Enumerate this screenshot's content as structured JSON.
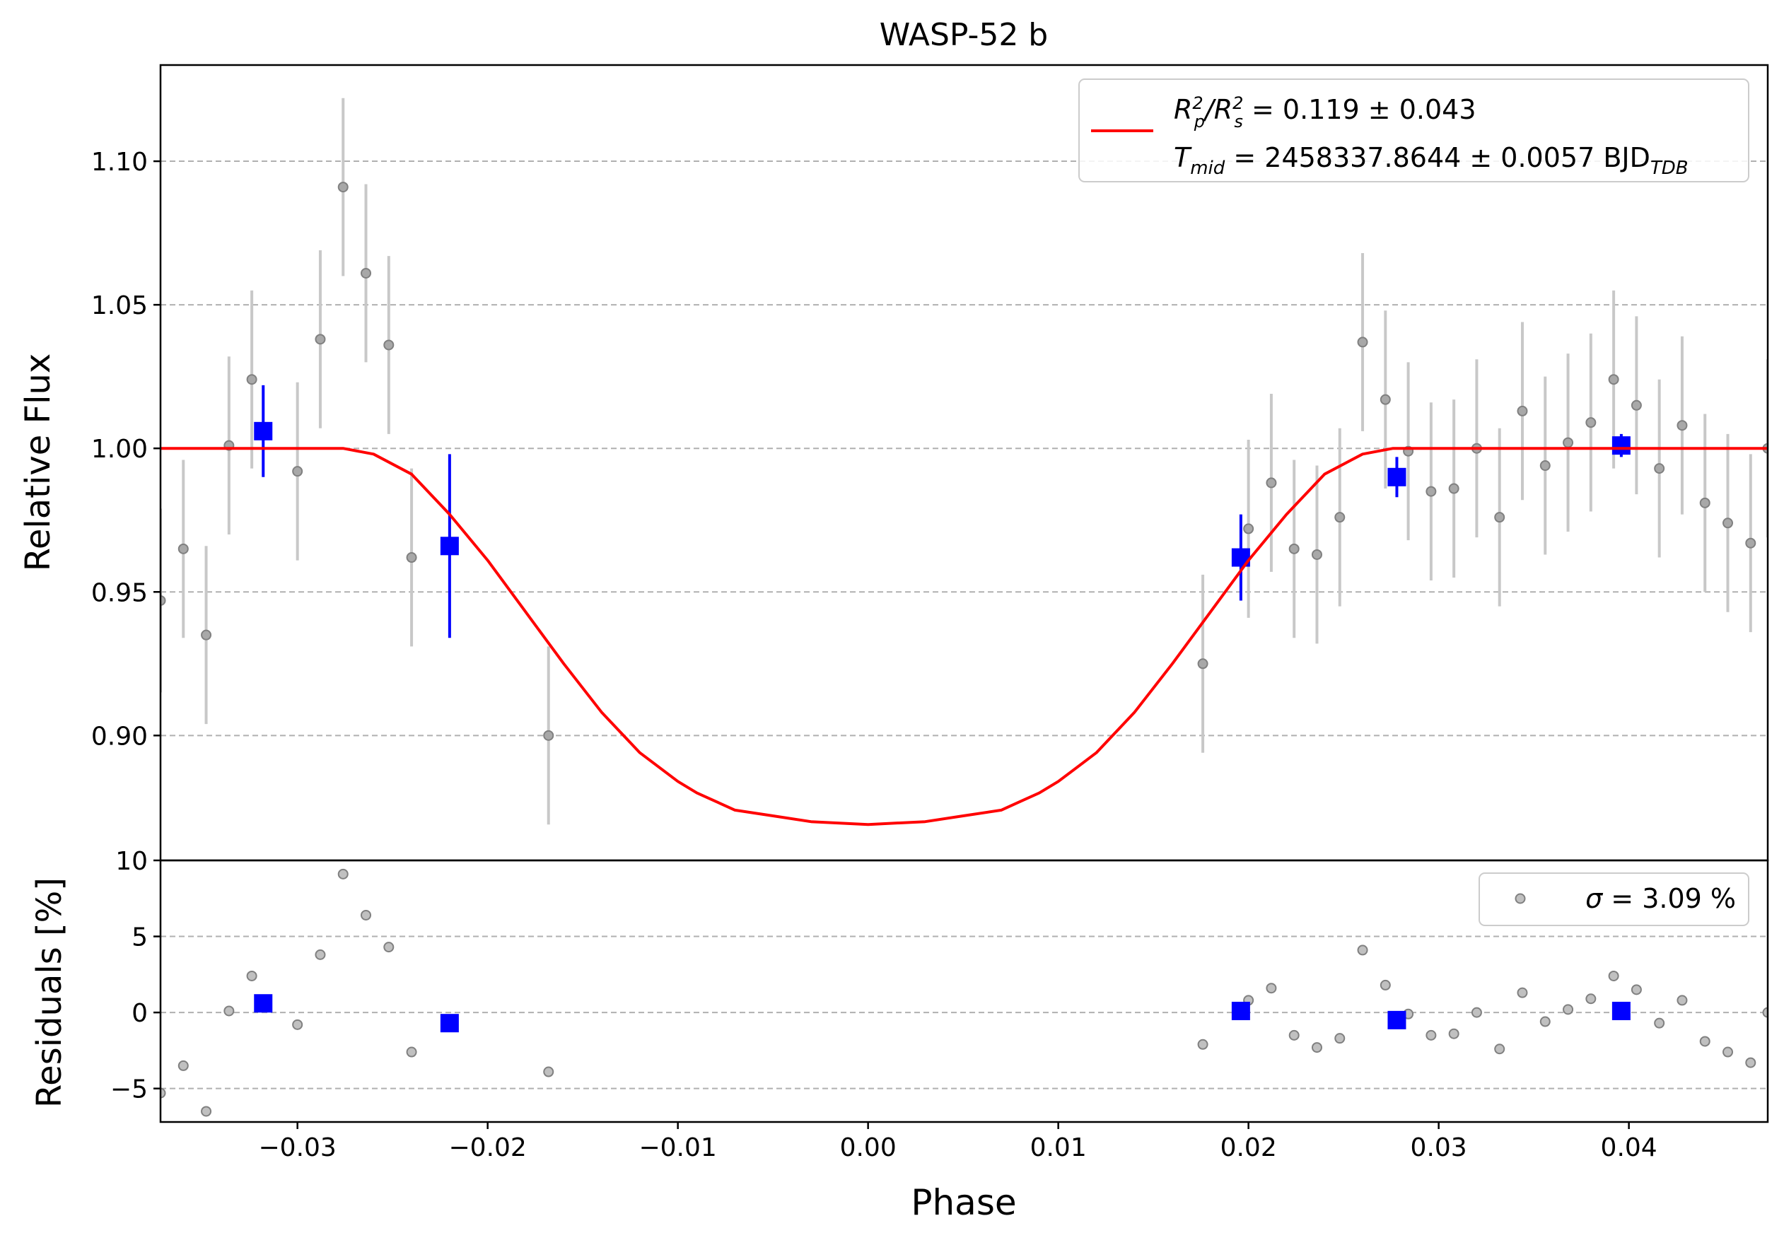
{
  "colors": {
    "model": "#ff0000",
    "raw_points": "#808080",
    "raw_errorbars": "#c8c8c8",
    "binned": "#0000ff",
    "grid": "#b0b0b0",
    "axes": "#000000",
    "legend_border": "#cccccc"
  },
  "chart_data": [
    {
      "type": "scatter",
      "panel": "light-curve",
      "title": "WASP-52 b",
      "xlabel": "",
      "ylabel": "Relative Flux",
      "xlim": [
        -0.0372,
        0.0473
      ],
      "ylim": [
        0.8565,
        1.1335
      ],
      "yticks": [
        0.9,
        0.95,
        1.0,
        1.05,
        1.1
      ],
      "ytick_labels": [
        "0.90",
        "0.95",
        "1.00",
        "1.05",
        "1.10"
      ],
      "grid": "horizontal dashed at y ticks",
      "legend": {
        "position": "top-right",
        "line1_prefix": "R",
        "line1_sub_a": "p",
        "line1_sup_a": "2",
        "line1_slash": "/R",
        "line1_sub_b": "s",
        "line1_sup_b": "2",
        "line1_value": " = 0.119 ± 0.043",
        "line2_prefix": "T",
        "line2_sub": "mid",
        "line2_value": " = 2458337.8644 ± 0.0057 BJD",
        "line2_unit_sub": "TDB"
      },
      "series": [
        {
          "kind": "raw-data",
          "points": [
            {
              "x": -0.0372,
              "y": 0.947,
              "err": 0.032
            },
            {
              "x": -0.036,
              "y": 0.965,
              "err": 0.031
            },
            {
              "x": -0.0348,
              "y": 0.935,
              "err": 0.031
            },
            {
              "x": -0.0336,
              "y": 1.001,
              "err": 0.031
            },
            {
              "x": -0.0324,
              "y": 1.024,
              "err": 0.031
            },
            {
              "x": -0.03,
              "y": 0.992,
              "err": 0.031
            },
            {
              "x": -0.0288,
              "y": 1.038,
              "err": 0.031
            },
            {
              "x": -0.0276,
              "y": 1.091,
              "err": 0.031
            },
            {
              "x": -0.0264,
              "y": 1.061,
              "err": 0.031
            },
            {
              "x": -0.0252,
              "y": 1.036,
              "err": 0.031
            },
            {
              "x": -0.024,
              "y": 0.962,
              "err": 0.031
            },
            {
              "x": -0.0168,
              "y": 0.9,
              "err": 0.031
            },
            {
              "x": 0.0176,
              "y": 0.925,
              "err": 0.031
            },
            {
              "x": 0.02,
              "y": 0.972,
              "err": 0.031
            },
            {
              "x": 0.0212,
              "y": 0.988,
              "err": 0.031
            },
            {
              "x": 0.0224,
              "y": 0.965,
              "err": 0.031
            },
            {
              "x": 0.0236,
              "y": 0.963,
              "err": 0.031
            },
            {
              "x": 0.0248,
              "y": 0.976,
              "err": 0.031
            },
            {
              "x": 0.026,
              "y": 1.037,
              "err": 0.031
            },
            {
              "x": 0.0272,
              "y": 1.017,
              "err": 0.031
            },
            {
              "x": 0.0284,
              "y": 0.999,
              "err": 0.031
            },
            {
              "x": 0.0296,
              "y": 0.985,
              "err": 0.031
            },
            {
              "x": 0.0308,
              "y": 0.986,
              "err": 0.031
            },
            {
              "x": 0.032,
              "y": 1.0,
              "err": 0.031
            },
            {
              "x": 0.0332,
              "y": 0.976,
              "err": 0.031
            },
            {
              "x": 0.0344,
              "y": 1.013,
              "err": 0.031
            },
            {
              "x": 0.0356,
              "y": 0.994,
              "err": 0.031
            },
            {
              "x": 0.0368,
              "y": 1.002,
              "err": 0.031
            },
            {
              "x": 0.038,
              "y": 1.009,
              "err": 0.031
            },
            {
              "x": 0.0392,
              "y": 1.024,
              "err": 0.031
            },
            {
              "x": 0.0404,
              "y": 1.015,
              "err": 0.031
            },
            {
              "x": 0.0416,
              "y": 0.993,
              "err": 0.031
            },
            {
              "x": 0.0428,
              "y": 1.008,
              "err": 0.031
            },
            {
              "x": 0.044,
              "y": 0.981,
              "err": 0.031
            },
            {
              "x": 0.0452,
              "y": 0.974,
              "err": 0.031
            },
            {
              "x": 0.0464,
              "y": 0.967,
              "err": 0.031
            },
            {
              "x": 0.0473,
              "y": 1.0,
              "err": 0.031
            }
          ]
        },
        {
          "kind": "binned",
          "points": [
            {
              "x": -0.0318,
              "y": 1.006,
              "err": 0.016
            },
            {
              "x": -0.022,
              "y": 0.966,
              "err": 0.032
            },
            {
              "x": 0.0196,
              "y": 0.962,
              "err": 0.015
            },
            {
              "x": 0.0278,
              "y": 0.99,
              "err": 0.007
            },
            {
              "x": 0.0396,
              "y": 1.001,
              "err": 0.004
            }
          ]
        },
        {
          "kind": "model",
          "name": "transit model",
          "x": [
            -0.0372,
            -0.03,
            -0.0276,
            -0.026,
            -0.024,
            -0.022,
            -0.02,
            -0.018,
            -0.016,
            -0.014,
            -0.012,
            -0.01,
            -0.009,
            -0.008,
            -0.007,
            -0.005,
            -0.003,
            0.0,
            0.003,
            0.005,
            0.007,
            0.008,
            0.009,
            0.01,
            0.012,
            0.014,
            0.016,
            0.018,
            0.02,
            0.022,
            0.024,
            0.026,
            0.0276,
            0.03,
            0.0473
          ],
          "y": [
            1.0,
            1.0,
            1.0,
            0.998,
            0.991,
            0.977,
            0.961,
            0.943,
            0.925,
            0.908,
            0.894,
            0.884,
            0.88,
            0.877,
            0.874,
            0.872,
            0.87,
            0.869,
            0.87,
            0.872,
            0.874,
            0.877,
            0.88,
            0.884,
            0.894,
            0.908,
            0.925,
            0.943,
            0.961,
            0.977,
            0.991,
            0.998,
            1.0,
            1.0,
            1.0
          ]
        }
      ]
    },
    {
      "type": "scatter",
      "panel": "residuals",
      "xlabel": "Phase",
      "ylabel": "Residuals [%]",
      "xlim": [
        -0.0372,
        0.0473
      ],
      "ylim": [
        -7.2,
        10
      ],
      "xticks": [
        -0.03,
        -0.02,
        -0.01,
        0.0,
        0.01,
        0.02,
        0.03,
        0.04
      ],
      "xtick_labels": [
        "−0.03",
        "−0.02",
        "−0.01",
        "0.00",
        "0.01",
        "0.02",
        "0.03",
        "0.04"
      ],
      "yticks": [
        -5,
        0,
        5,
        10
      ],
      "ytick_labels": [
        "−5",
        "0",
        "5",
        "10"
      ],
      "grid": "horizontal dashed at -5, 0, 5",
      "legend": {
        "position": "top-right",
        "sigma_symbol": "σ",
        "sigma_value": " = 3.09 %"
      },
      "series": [
        {
          "kind": "raw-residuals",
          "points": [
            {
              "x": -0.0372,
              "y": -5.3
            },
            {
              "x": -0.036,
              "y": -3.5
            },
            {
              "x": -0.0348,
              "y": -6.5
            },
            {
              "x": -0.0336,
              "y": 0.1
            },
            {
              "x": -0.0324,
              "y": 2.4
            },
            {
              "x": -0.03,
              "y": -0.8
            },
            {
              "x": -0.0288,
              "y": 3.8
            },
            {
              "x": -0.0276,
              "y": 9.1
            },
            {
              "x": -0.0264,
              "y": 6.4
            },
            {
              "x": -0.0252,
              "y": 4.3
            },
            {
              "x": -0.024,
              "y": -2.6
            },
            {
              "x": -0.0168,
              "y": -3.9
            },
            {
              "x": 0.0176,
              "y": -2.1
            },
            {
              "x": 0.02,
              "y": 0.8
            },
            {
              "x": 0.0212,
              "y": 1.6
            },
            {
              "x": 0.0224,
              "y": -1.5
            },
            {
              "x": 0.0236,
              "y": -2.3
            },
            {
              "x": 0.0248,
              "y": -1.7
            },
            {
              "x": 0.026,
              "y": 4.1
            },
            {
              "x": 0.0272,
              "y": 1.8
            },
            {
              "x": 0.0284,
              "y": -0.1
            },
            {
              "x": 0.0296,
              "y": -1.5
            },
            {
              "x": 0.0308,
              "y": -1.4
            },
            {
              "x": 0.032,
              "y": 0.0
            },
            {
              "x": 0.0332,
              "y": -2.4
            },
            {
              "x": 0.0344,
              "y": 1.3
            },
            {
              "x": 0.0356,
              "y": -0.6
            },
            {
              "x": 0.0368,
              "y": 0.2
            },
            {
              "x": 0.038,
              "y": 0.9
            },
            {
              "x": 0.0392,
              "y": 2.4
            },
            {
              "x": 0.0404,
              "y": 1.5
            },
            {
              "x": 0.0416,
              "y": -0.7
            },
            {
              "x": 0.0428,
              "y": 0.8
            },
            {
              "x": 0.044,
              "y": -1.9
            },
            {
              "x": 0.0452,
              "y": -2.6
            },
            {
              "x": 0.0464,
              "y": -3.3
            },
            {
              "x": 0.0473,
              "y": 0.0
            }
          ]
        },
        {
          "kind": "binned-residuals",
          "points": [
            {
              "x": -0.0318,
              "y": 0.6
            },
            {
              "x": -0.022,
              "y": -0.7
            },
            {
              "x": 0.0196,
              "y": 0.1
            },
            {
              "x": 0.0278,
              "y": -0.5
            },
            {
              "x": 0.0396,
              "y": 0.1
            }
          ]
        }
      ]
    }
  ]
}
